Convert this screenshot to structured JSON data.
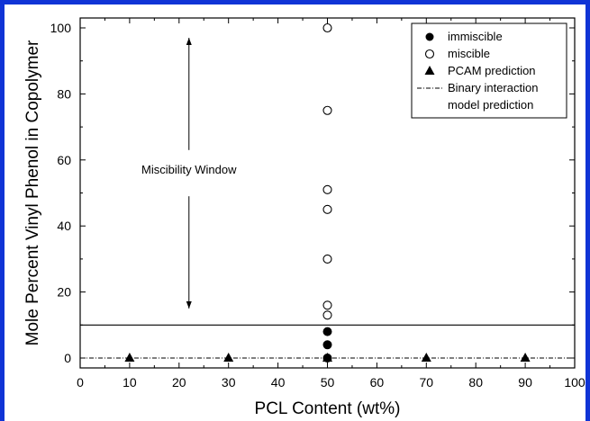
{
  "chart_data": {
    "type": "scatter",
    "xlabel": "PCL Content (wt%)",
    "ylabel": "Mole Percent Vinyl Phenol in Copolymer",
    "xlim": [
      0,
      100
    ],
    "ylim": [
      -3,
      103
    ],
    "xticks": [
      "0",
      "10",
      "20",
      "30",
      "40",
      "50",
      "60",
      "70",
      "80",
      "90",
      "100"
    ],
    "yticks": [
      "0",
      "20",
      "40",
      "60",
      "80",
      "100"
    ],
    "grid": false,
    "legend_position": "top-right",
    "series": [
      {
        "name": "immiscible",
        "marker": "filled-circle",
        "color": "#000000",
        "points": [
          [
            50,
            0
          ],
          [
            50,
            4
          ],
          [
            50,
            8
          ]
        ]
      },
      {
        "name": "miscible",
        "marker": "open-circle",
        "color": "#000000",
        "points": [
          [
            50,
            13
          ],
          [
            50,
            16
          ],
          [
            50,
            30
          ],
          [
            50,
            45
          ],
          [
            50,
            51
          ],
          [
            50,
            75
          ],
          [
            50,
            100
          ]
        ]
      },
      {
        "name": "PCAM prediction",
        "marker": "filled-triangle",
        "color": "#000000",
        "points": [
          [
            10,
            0
          ],
          [
            30,
            0
          ],
          [
            50,
            0
          ],
          [
            70,
            0
          ],
          [
            90,
            0
          ]
        ]
      },
      {
        "name": "Binary interaction model prediction",
        "name_lines": [
          "Binary interaction",
          "model prediction"
        ],
        "marker": "dash-dot-line",
        "color": "#000000",
        "y": 0
      }
    ],
    "reference_lines": [
      {
        "y": 10,
        "style": "solid"
      }
    ],
    "annotations": [
      {
        "text": "Miscibility Window",
        "x": 22,
        "y": 57,
        "arrow_from": 63,
        "arrow_to": 97,
        "arrow_from2": 49,
        "arrow_to2": 15
      }
    ]
  }
}
